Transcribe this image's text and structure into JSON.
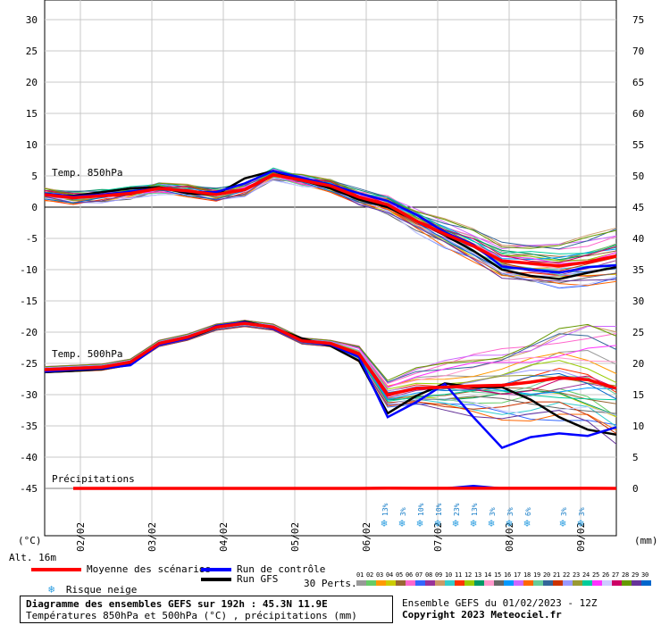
{
  "chart_data": {
    "type": "line",
    "left_axis": {
      "label": "(°C)",
      "ticks": [
        30,
        25,
        20,
        15,
        10,
        5,
        0,
        -5,
        -10,
        -15,
        -20,
        -25,
        -30,
        -35,
        -40,
        -45
      ]
    },
    "right_axis": {
      "label": "(mm)",
      "ticks": [
        75,
        70,
        65,
        60,
        55,
        50,
        45,
        40,
        35,
        30,
        25,
        20,
        15,
        10,
        5,
        0
      ]
    },
    "x_ticks": [
      "02/02",
      "03/02",
      "04/02",
      "05/02",
      "06/02",
      "07/02",
      "08/02",
      "09/02"
    ],
    "panel_labels": {
      "t850": "Temp. 850hPa",
      "t500": "Temp. 500hPa",
      "precip": "Précipitations"
    },
    "altitude": "Alt. 16m",
    "snow_labels": [
      "13%",
      "3%",
      "10%",
      "10%",
      "23%",
      "13%",
      "3%",
      "3%",
      "6%",
      "3%",
      "3%"
    ],
    "series": [
      {
        "name": "Moyenne des scénarios",
        "color": "#ff0000",
        "t850": [
          2.0,
          1.5,
          1.8,
          2.2,
          3.0,
          2.6,
          2.0,
          2.8,
          5.2,
          4.3,
          3.4,
          1.6,
          0.4,
          -2.2,
          -4.3,
          -6.2,
          -8.6,
          -9.0,
          -9.4,
          -8.8,
          -7.8
        ],
        "t500": [
          -26.0,
          -25.8,
          -25.6,
          -24.8,
          -21.8,
          -20.8,
          -19.2,
          -18.6,
          -19.2,
          -21.4,
          -21.8,
          -23.5,
          -30.0,
          -29.0,
          -28.8,
          -28.6,
          -28.5,
          -28.0,
          -27.3,
          -27.6,
          -29.0
        ],
        "precip": [
          0,
          0,
          0,
          0,
          0,
          0,
          0,
          0,
          0,
          0,
          0,
          0,
          0.2,
          0.1,
          0.1,
          0.1,
          0.1,
          0.1,
          0.1,
          0.1,
          0
        ]
      },
      {
        "name": "Run de contrôle",
        "color": "#0000ff",
        "t850": [
          2.2,
          1.7,
          2.0,
          2.5,
          3.0,
          2.5,
          2.4,
          3.8,
          5.8,
          4.7,
          3.6,
          2.2,
          1.0,
          -1.2,
          -4.0,
          -6.0,
          -9.5,
          -10.0,
          -10.5,
          -9.6,
          -9.3
        ],
        "t500": [
          -26.3,
          -26.0,
          -25.8,
          -25.3,
          -22.0,
          -21.0,
          -19.0,
          -18.4,
          -19.4,
          -21.5,
          -22.0,
          -24.0,
          -33.6,
          -31.2,
          -28.3,
          -33.6,
          -38.5,
          -36.8,
          -36.2,
          -36.6,
          -35.2
        ],
        "precip": [
          0,
          0,
          0,
          0,
          0,
          0,
          0,
          0,
          0,
          0,
          0,
          0,
          0.4,
          0,
          0,
          2.0,
          0,
          0,
          0,
          0,
          0
        ]
      },
      {
        "name": "Run GFS",
        "color": "#000000",
        "t850": [
          2.0,
          1.8,
          2.4,
          3.0,
          3.2,
          2.2,
          2.0,
          4.6,
          5.8,
          4.3,
          3.0,
          1.2,
          0,
          -2.2,
          -4.5,
          -7.0,
          -10.0,
          -11.0,
          -11.5,
          -10.5,
          -9.6
        ],
        "t500": [
          -26.4,
          -26.2,
          -25.9,
          -25.2,
          -21.8,
          -21.0,
          -19.3,
          -18.3,
          -19.3,
          -21.0,
          -22.2,
          -24.6,
          -33.0,
          -30.2,
          -28.2,
          -28.8,
          -28.8,
          -30.8,
          -33.6,
          -35.6,
          -36.4
        ],
        "precip": [
          0,
          0,
          0,
          0,
          0,
          0,
          0,
          0,
          0,
          0,
          0,
          0,
          0,
          0,
          0,
          0,
          0,
          0,
          0,
          0,
          0
        ]
      }
    ],
    "legend_snow": "Risque neige",
    "perts": {
      "label": "30 Perts.",
      "numbers": [
        "01",
        "02",
        "03",
        "04",
        "05",
        "06",
        "07",
        "08",
        "09",
        "10",
        "11",
        "12",
        "13",
        "14",
        "15",
        "16",
        "17",
        "18",
        "19",
        "20",
        "21",
        "22",
        "23",
        "24",
        "25",
        "26",
        "27",
        "28",
        "29",
        "30"
      ],
      "colors": [
        "#999999",
        "#66cc66",
        "#ff9900",
        "#cccc00",
        "#996633",
        "#ff66cc",
        "#3366ff",
        "#993399",
        "#cc9966",
        "#33cccc",
        "#ff3300",
        "#99cc00",
        "#009966",
        "#ff99cc",
        "#666666",
        "#0099ff",
        "#cc66ff",
        "#ff6600",
        "#66cc99",
        "#336699",
        "#cc3300",
        "#9999ff",
        "#999933",
        "#00cc99",
        "#ff33ff",
        "#ccccff",
        "#cc0066",
        "#669900",
        "#663399",
        "#0066cc"
      ]
    }
  },
  "footer": {
    "title": "Diagramme des ensembles GEFS sur 192h : 45.3N 11.9E",
    "subtitle": "Températures 850hPa et 500hPa (°C) , précipitations (mm)",
    "run": "Ensemble GEFS du 01/02/2023 - 12Z",
    "copyright": "Copyright 2023 Meteociel.fr"
  }
}
